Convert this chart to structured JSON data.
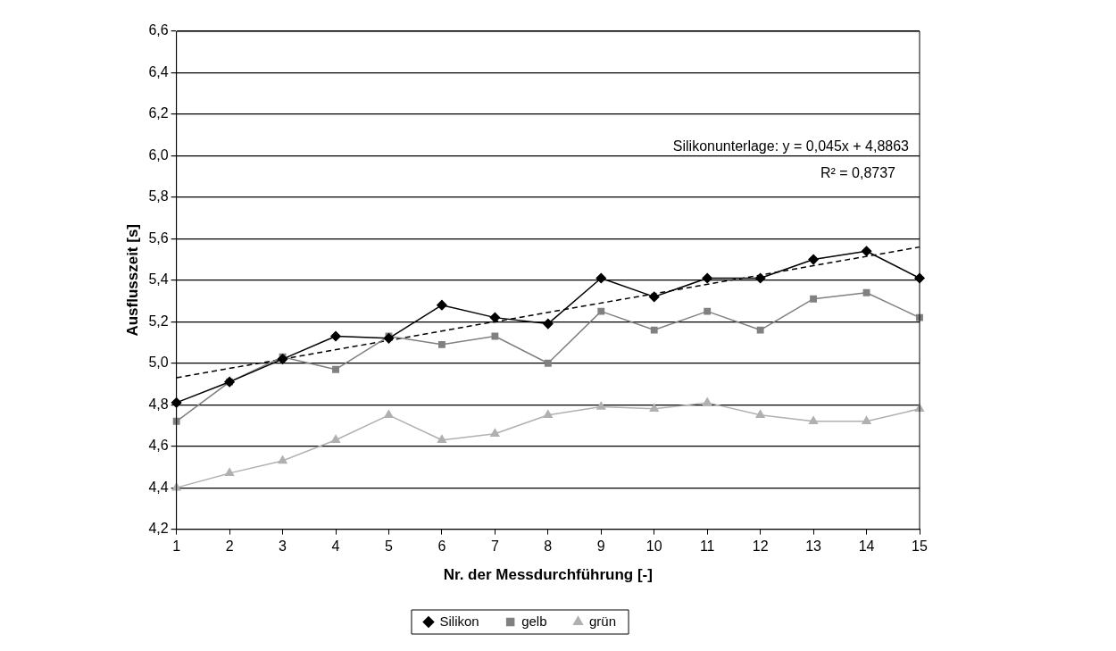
{
  "chart_data": {
    "type": "line",
    "xlabel": "Nr. der Messdurchführung [-]",
    "ylabel": "Ausflusszeit [s]",
    "categories": [
      "1",
      "2",
      "3",
      "4",
      "5",
      "6",
      "7",
      "8",
      "9",
      "10",
      "11",
      "12",
      "13",
      "14",
      "15"
    ],
    "series": [
      {
        "name": "Silikon",
        "color": "#000000",
        "marker": "diamond",
        "values": [
          4.81,
          4.91,
          5.02,
          5.13,
          5.12,
          5.28,
          5.22,
          5.19,
          5.41,
          5.32,
          5.41,
          5.41,
          5.5,
          5.54,
          5.41
        ]
      },
      {
        "name": "gelb",
        "color": "#808080",
        "marker": "square",
        "values": [
          4.72,
          4.91,
          5.03,
          4.97,
          5.13,
          5.09,
          5.13,
          5.0,
          5.25,
          5.16,
          5.25,
          5.16,
          5.31,
          5.34,
          5.22
        ]
      },
      {
        "name": "grün",
        "color": "#b0b0b0",
        "marker": "triangle",
        "values": [
          4.4,
          4.47,
          4.53,
          4.63,
          4.75,
          4.63,
          4.66,
          4.75,
          4.79,
          4.78,
          4.81,
          4.75,
          4.72,
          4.72,
          4.78
        ]
      },
      {
        "type": "line",
        "color": "#000000",
        "line_style": "dashed",
        "marker": "none",
        "x": [
          "1",
          "15"
        ],
        "values": [
          4.93,
          5.56
        ]
      }
    ],
    "ylim": [
      4.2,
      6.6
    ],
    "yticks": [
      {
        "value": 4.2,
        "label": "4,2"
      },
      {
        "value": 4.4,
        "label": "4,4"
      },
      {
        "value": 4.6,
        "label": "4,6"
      },
      {
        "value": 4.8,
        "label": "4,8"
      },
      {
        "value": 5.0,
        "label": "5,0"
      },
      {
        "value": 5.2,
        "label": "5,2"
      },
      {
        "value": 5.4,
        "label": "5,4"
      },
      {
        "value": 5.6,
        "label": "5,6"
      },
      {
        "value": 5.8,
        "label": "5,8"
      },
      {
        "value": 6.0,
        "label": "6,0"
      },
      {
        "value": 6.2,
        "label": "6,2"
      },
      {
        "value": 6.4,
        "label": "6,4"
      },
      {
        "value": 6.6,
        "label": "6,6"
      }
    ],
    "grid": "y",
    "legend": "bottom",
    "annotations": [
      "Silikonunterlage: y = 0,045x + 4,8863",
      "R² = 0,8737"
    ]
  }
}
